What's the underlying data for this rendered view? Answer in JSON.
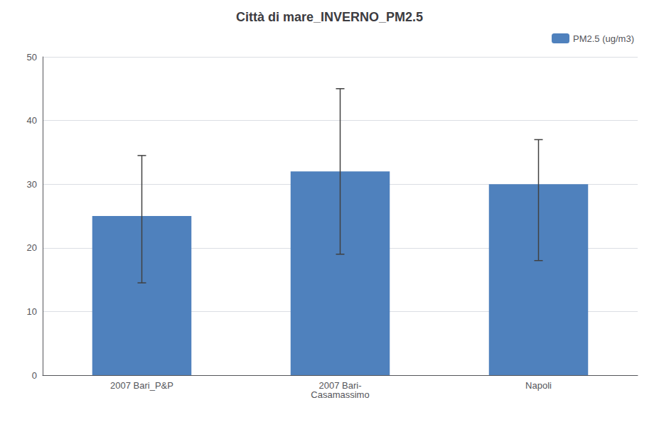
{
  "chart_data": {
    "type": "bar",
    "title": "Città di mare_INVERNO_PM2.5",
    "categories": [
      "2007 Bari_P&P",
      "2007 Bari-\nCasamassimo",
      "Napoli"
    ],
    "series": [
      {
        "name": "PM2.5 (ug/m3)",
        "color": "#4f81bd",
        "values": [
          25,
          32,
          30
        ],
        "errors_upper": [
          9.5,
          13,
          7
        ],
        "errors_lower": [
          10.5,
          13,
          12
        ]
      }
    ],
    "ylim": [
      0,
      50
    ],
    "yticks": [
      0,
      10,
      20,
      30,
      40,
      50
    ],
    "grid": true,
    "legend": "upper right"
  }
}
